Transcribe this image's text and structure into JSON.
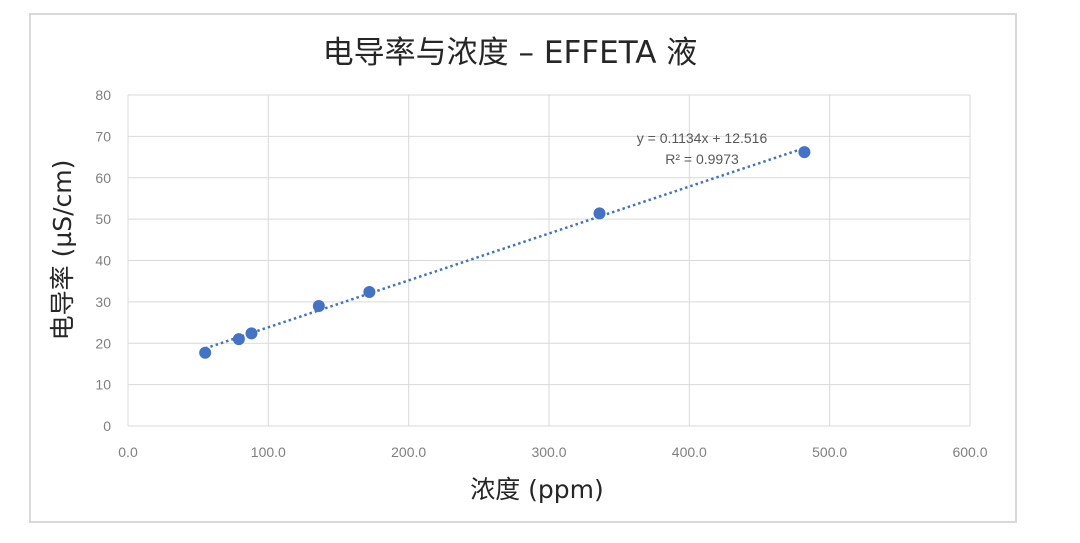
{
  "chart_data": {
    "type": "scatter",
    "title": "电导率与浓度 – EFFETA 液",
    "xlabel": "浓度 (ppm)",
    "ylabel": "电导率 (µS/cm)",
    "xlim": [
      0,
      600
    ],
    "ylim": [
      0,
      80
    ],
    "x_ticks": [
      "0.0",
      "100.0",
      "200.0",
      "300.0",
      "400.0",
      "500.0",
      "600.0"
    ],
    "y_ticks": [
      "0",
      "10",
      "20",
      "30",
      "40",
      "50",
      "60",
      "70",
      "80"
    ],
    "grid": true,
    "series": [
      {
        "points": [
          {
            "x": 55,
            "y": 17.7
          },
          {
            "x": 79,
            "y": 21.0
          },
          {
            "x": 88,
            "y": 22.4
          },
          {
            "x": 136,
            "y": 29.0
          },
          {
            "x": 172,
            "y": 32.4
          },
          {
            "x": 336,
            "y": 51.4
          },
          {
            "x": 482,
            "y": 66.2
          }
        ],
        "color": "#4472c4"
      }
    ],
    "trendline": {
      "slope": 0.1134,
      "intercept": 12.516,
      "x_range": [
        55,
        482
      ],
      "equation": "y = 0.1134x + 12.516",
      "r_squared": "R² = 0.9973",
      "color": "#4472c4"
    }
  }
}
